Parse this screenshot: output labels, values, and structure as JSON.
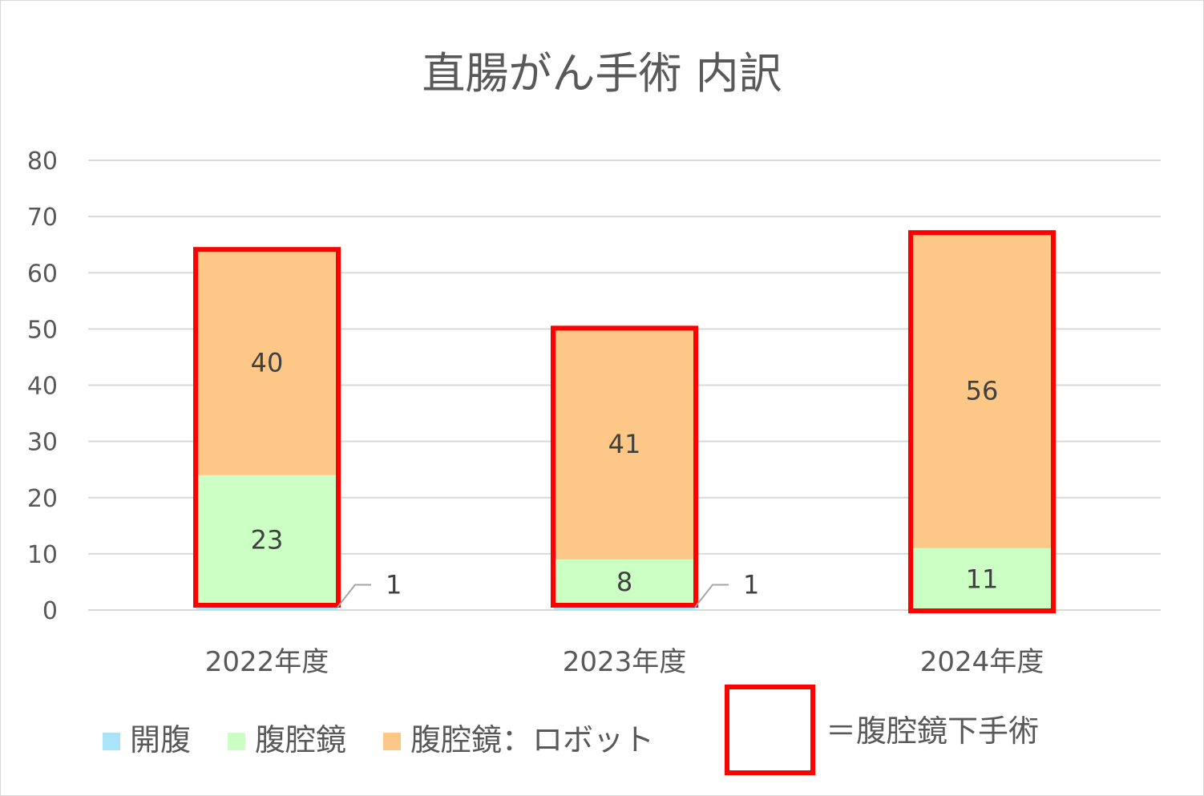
{
  "chart_data": {
    "type": "bar",
    "stacked": true,
    "title": "直腸がん手術 内訳",
    "categories": [
      "2022年度",
      "2023年度",
      "2024年度"
    ],
    "series": [
      {
        "name": "開腹",
        "values": [
          1,
          1,
          0
        ],
        "color": "#A9E4F8",
        "labels": [
          "1",
          "1",
          ""
        ]
      },
      {
        "name": "腹腔鏡",
        "values": [
          23,
          8,
          11
        ],
        "color": "#CCFFC4",
        "labels": [
          "23",
          "8",
          "11"
        ]
      },
      {
        "name": "腹腔鏡：ロボット",
        "values": [
          40,
          41,
          56
        ],
        "color": "#FDC887",
        "labels": [
          "40",
          "41",
          "56"
        ]
      }
    ],
    "ylim": [
      0,
      80
    ],
    "yticks": [
      "0",
      "10",
      "20",
      "30",
      "40",
      "50",
      "60",
      "70",
      "80"
    ],
    "grid": true,
    "legend_position": "bottom",
    "annotation": {
      "text": "＝腹腔鏡下手術",
      "box_color": "#FF0000",
      "note": "red boxes enclose 腹腔鏡 and 腹腔鏡：ロボット portions"
    },
    "colors": {
      "grid": "#D9D9D9",
      "text": "#595959",
      "highlight": "#FF0000"
    }
  }
}
